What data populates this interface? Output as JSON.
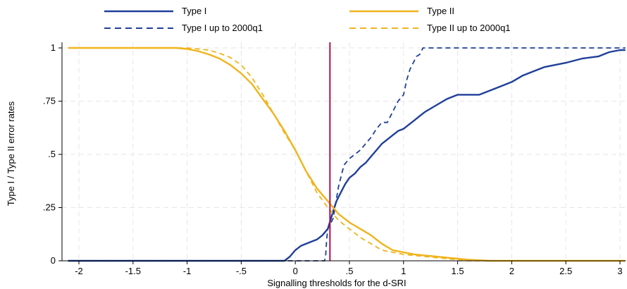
{
  "chart_data": {
    "type": "line",
    "xlabel": "Signalling thresholds for the d-SRI",
    "ylabel": "Type I / Type II error rates",
    "xlim": [
      -2.1,
      3.05
    ],
    "ylim": [
      0,
      1.02
    ],
    "x_ticks": [
      {
        "value": -2,
        "label": "-2"
      },
      {
        "value": -1.5,
        "label": "-1.5"
      },
      {
        "value": -1,
        "label": "-1"
      },
      {
        "value": -0.5,
        "label": "-.5"
      },
      {
        "value": 0,
        "label": "0"
      },
      {
        "value": 0.5,
        "label": ".5"
      },
      {
        "value": 1,
        "label": "1"
      },
      {
        "value": 1.5,
        "label": "1.5"
      },
      {
        "value": 2,
        "label": "2"
      },
      {
        "value": 2.5,
        "label": "2.5"
      },
      {
        "value": 3,
        "label": "3"
      }
    ],
    "y_ticks": [
      {
        "value": 0,
        "label": "0"
      },
      {
        "value": 0.25,
        "label": ".25"
      },
      {
        "value": 0.5,
        "label": ".5"
      },
      {
        "value": 0.75,
        "label": ".75"
      },
      {
        "value": 1,
        "label": "1"
      }
    ],
    "grid": true,
    "legend_position": "top",
    "vertical_line": {
      "x": 0.32,
      "color": "#b0104a"
    },
    "series": [
      {
        "name": "Type I",
        "color": "#1f3f99",
        "dash": "solid",
        "points": [
          [
            -2.1,
            0
          ],
          [
            -0.1,
            0
          ],
          [
            -0.05,
            0.02
          ],
          [
            0,
            0.05
          ],
          [
            0.05,
            0.07
          ],
          [
            0.1,
            0.08
          ],
          [
            0.15,
            0.09
          ],
          [
            0.2,
            0.1
          ],
          [
            0.25,
            0.12
          ],
          [
            0.3,
            0.15
          ],
          [
            0.33,
            0.2
          ],
          [
            0.36,
            0.25
          ],
          [
            0.38,
            0.28
          ],
          [
            0.4,
            0.3
          ],
          [
            0.43,
            0.33
          ],
          [
            0.46,
            0.36
          ],
          [
            0.5,
            0.39
          ],
          [
            0.55,
            0.41
          ],
          [
            0.6,
            0.44
          ],
          [
            0.65,
            0.46
          ],
          [
            0.7,
            0.49
          ],
          [
            0.75,
            0.52
          ],
          [
            0.8,
            0.55
          ],
          [
            0.85,
            0.57
          ],
          [
            0.9,
            0.59
          ],
          [
            0.95,
            0.61
          ],
          [
            1.0,
            0.62
          ],
          [
            1.05,
            0.64
          ],
          [
            1.1,
            0.66
          ],
          [
            1.15,
            0.68
          ],
          [
            1.2,
            0.7
          ],
          [
            1.3,
            0.73
          ],
          [
            1.4,
            0.76
          ],
          [
            1.5,
            0.78
          ],
          [
            1.6,
            0.78
          ],
          [
            1.7,
            0.78
          ],
          [
            1.8,
            0.8
          ],
          [
            1.9,
            0.82
          ],
          [
            2.0,
            0.84
          ],
          [
            2.1,
            0.87
          ],
          [
            2.2,
            0.89
          ],
          [
            2.3,
            0.91
          ],
          [
            2.5,
            0.93
          ],
          [
            2.65,
            0.95
          ],
          [
            2.8,
            0.96
          ],
          [
            2.9,
            0.98
          ],
          [
            3.0,
            0.99
          ],
          [
            3.05,
            0.99
          ]
        ]
      },
      {
        "name": "Type I up to 2000q1",
        "color": "#1f3f99",
        "dash": "dashed",
        "points": [
          [
            -2.1,
            0
          ],
          [
            0.27,
            0
          ],
          [
            0.28,
            0.02
          ],
          [
            0.29,
            0.1
          ],
          [
            0.3,
            0.15
          ],
          [
            0.35,
            0.2
          ],
          [
            0.4,
            0.35
          ],
          [
            0.45,
            0.45
          ],
          [
            0.5,
            0.48
          ],
          [
            0.55,
            0.5
          ],
          [
            0.6,
            0.52
          ],
          [
            0.65,
            0.55
          ],
          [
            0.7,
            0.58
          ],
          [
            0.75,
            0.62
          ],
          [
            0.8,
            0.65
          ],
          [
            0.85,
            0.65
          ],
          [
            0.9,
            0.7
          ],
          [
            0.95,
            0.75
          ],
          [
            1.0,
            0.78
          ],
          [
            1.03,
            0.85
          ],
          [
            1.06,
            0.9
          ],
          [
            1.09,
            0.93
          ],
          [
            1.12,
            0.96
          ],
          [
            1.15,
            0.97
          ],
          [
            1.18,
            1.0
          ],
          [
            3.05,
            1.0
          ]
        ]
      },
      {
        "name": "Type II",
        "color": "#f0b41c",
        "dash": "solid",
        "points": [
          [
            -2.1,
            1
          ],
          [
            -1.1,
            1
          ],
          [
            -1.0,
            0.995
          ],
          [
            -0.9,
            0.985
          ],
          [
            -0.8,
            0.97
          ],
          [
            -0.7,
            0.95
          ],
          [
            -0.6,
            0.92
          ],
          [
            -0.5,
            0.88
          ],
          [
            -0.4,
            0.83
          ],
          [
            -0.3,
            0.76
          ],
          [
            -0.2,
            0.69
          ],
          [
            -0.1,
            0.61
          ],
          [
            0,
            0.52
          ],
          [
            0.05,
            0.47
          ],
          [
            0.1,
            0.42
          ],
          [
            0.2,
            0.34
          ],
          [
            0.3,
            0.28
          ],
          [
            0.4,
            0.22
          ],
          [
            0.5,
            0.18
          ],
          [
            0.6,
            0.15
          ],
          [
            0.7,
            0.12
          ],
          [
            0.8,
            0.08
          ],
          [
            0.9,
            0.05
          ],
          [
            1.0,
            0.04
          ],
          [
            1.1,
            0.03
          ],
          [
            1.2,
            0.025
          ],
          [
            1.3,
            0.02
          ],
          [
            1.4,
            0.015
          ],
          [
            1.5,
            0.01
          ],
          [
            1.6,
            0.005
          ],
          [
            1.8,
            0
          ],
          [
            3.05,
            0
          ]
        ]
      },
      {
        "name": "Type II up to 2000q1",
        "color": "#f0b41c",
        "dash": "dashed",
        "points": [
          [
            -2.1,
            1
          ],
          [
            -1.0,
            1
          ],
          [
            -0.9,
            0.995
          ],
          [
            -0.8,
            0.99
          ],
          [
            -0.7,
            0.975
          ],
          [
            -0.6,
            0.955
          ],
          [
            -0.5,
            0.92
          ],
          [
            -0.4,
            0.86
          ],
          [
            -0.3,
            0.78
          ],
          [
            -0.2,
            0.69
          ],
          [
            -0.1,
            0.6
          ],
          [
            0,
            0.52
          ],
          [
            0.1,
            0.42
          ],
          [
            0.2,
            0.32
          ],
          [
            0.3,
            0.25
          ],
          [
            0.4,
            0.19
          ],
          [
            0.5,
            0.15
          ],
          [
            0.6,
            0.11
          ],
          [
            0.7,
            0.08
          ],
          [
            0.8,
            0.05
          ],
          [
            0.9,
            0.04
          ],
          [
            1.0,
            0.03
          ],
          [
            1.2,
            0.02
          ],
          [
            1.4,
            0.01
          ],
          [
            1.6,
            0
          ],
          [
            3.05,
            0
          ]
        ]
      }
    ]
  }
}
